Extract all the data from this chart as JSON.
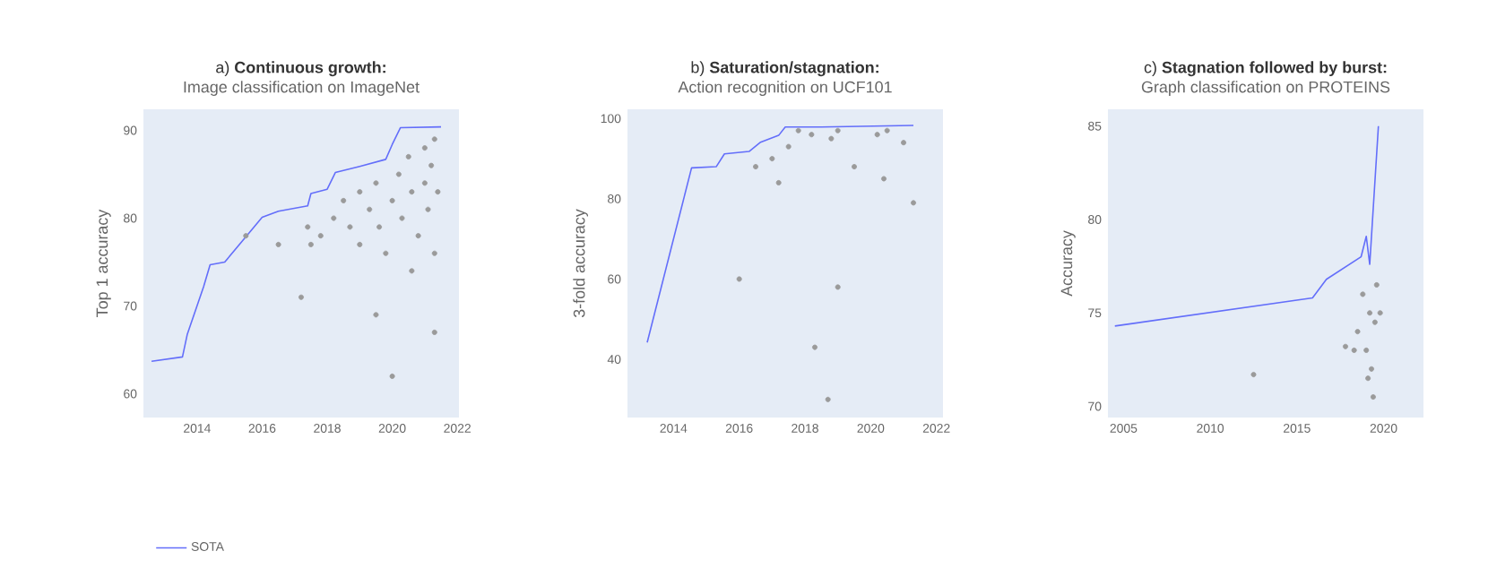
{
  "chart_data": [
    {
      "type": "line",
      "title": "a) **Continuous growth:**",
      "subtitle": "Image classification on ImageNet",
      "ylabel": "Top 1 accuracy",
      "xlim": [
        2012.35,
        2022.05
      ],
      "ylim": [
        57.3,
        92.4
      ],
      "xticks": [
        2014,
        2016,
        2018,
        2020,
        2022
      ],
      "yticks": [
        60,
        70,
        80,
        90
      ],
      "legend": "bottom",
      "series": [
        {
          "name": "SOTA",
          "color": "#636efa",
          "x": [
            2012.6,
            2013.55,
            2013.7,
            2014.2,
            2014.4,
            2014.85,
            2016.0,
            2016.5,
            2017.4,
            2017.5,
            2018.0,
            2018.25,
            2019.0,
            2019.8,
            2020.0,
            2020.25,
            2021.5
          ],
          "values": [
            63.7,
            64.2,
            66.8,
            72.2,
            74.7,
            75.0,
            80.1,
            80.8,
            81.4,
            82.8,
            83.3,
            85.2,
            85.9,
            86.7,
            88.4,
            90.3,
            90.4
          ]
        },
        {
          "type": "scatter",
          "color": "#9a9a9a",
          "x": [
            2017.4,
            2017.5,
            2017.8,
            2018.2,
            2018.5,
            2018.7,
            2019.0,
            2019.0,
            2019.3,
            2019.5,
            2019.6,
            2019.8,
            2020.0,
            2020.2,
            2020.3,
            2020.5,
            2020.6,
            2020.8,
            2021.0,
            2021.0,
            2021.1,
            2021.2,
            2021.3,
            2021.3,
            2021.4,
            2020.6,
            2017.2,
            2019.5,
            2021.3,
            2020.0,
            2015.5,
            2016.5
          ],
          "values": [
            79,
            77,
            78,
            80,
            82,
            79,
            83,
            77,
            81,
            84,
            79,
            76,
            82,
            85,
            80,
            87,
            83,
            78,
            88,
            84,
            81,
            86,
            89,
            76,
            83,
            74,
            71,
            69,
            67,
            62,
            78,
            77
          ]
        }
      ]
    },
    {
      "type": "line",
      "title": "b) **Saturation/stagnation:**",
      "subtitle": "Action recognition on UCF101",
      "ylabel": "3-fold accuracy",
      "xlim": [
        2012.6,
        2022.2
      ],
      "ylim": [
        25.5,
        102.3
      ],
      "xticks": [
        2014,
        2016,
        2018,
        2020,
        2022
      ],
      "yticks": [
        40,
        60,
        80,
        100
      ],
      "series": [
        {
          "color": "#636efa",
          "x": [
            2013.2,
            2014.55,
            2015.3,
            2015.55,
            2016.3,
            2016.65,
            2017.2,
            2017.4,
            2018.5,
            2021.3
          ],
          "values": [
            44.2,
            87.7,
            88.0,
            91.2,
            91.8,
            94.1,
            95.8,
            97.9,
            97.9,
            98.3
          ]
        },
        {
          "type": "scatter",
          "color": "#9a9a9a",
          "x": [
            2016.5,
            2017.0,
            2017.5,
            2017.8,
            2018.2,
            2018.8,
            2019.0,
            2019.5,
            2020.2,
            2020.5,
            2021.0,
            2021.3,
            2016.0,
            2019.0,
            2017.2,
            2018.3,
            2018.7,
            2020.4
          ],
          "values": [
            88,
            90,
            93,
            97,
            96,
            95,
            97,
            88,
            96,
            97,
            94,
            79,
            60,
            58,
            84,
            43,
            30,
            85
          ]
        }
      ]
    },
    {
      "type": "line",
      "title": "c) **Stagnation followed by burst:**",
      "subtitle": "Graph classification on PROTEINS",
      "ylabel": "Accuracy",
      "xlim": [
        2004.1,
        2022.3
      ],
      "ylim": [
        69.4,
        85.9
      ],
      "xticks": [
        2005,
        2010,
        2015,
        2020
      ],
      "yticks": [
        70,
        75,
        80,
        85
      ],
      "series": [
        {
          "color": "#636efa",
          "x": [
            2004.5,
            2015.9,
            2016.7,
            2018.7,
            2019.0,
            2019.2,
            2019.7
          ],
          "values": [
            74.3,
            75.8,
            76.8,
            78.0,
            79.1,
            77.6,
            85.0
          ]
        },
        {
          "type": "scatter",
          "color": "#9a9a9a",
          "x": [
            2018.5,
            2018.8,
            2019.0,
            2019.2,
            2019.3,
            2019.4,
            2019.1,
            2019.5,
            2019.6,
            2018.3,
            2012.5,
            2019.8,
            2017.8
          ],
          "values": [
            74,
            76,
            73,
            75,
            72,
            70.5,
            71.5,
            74.5,
            76.5,
            73,
            71.7,
            75,
            73.2
          ]
        }
      ]
    }
  ]
}
